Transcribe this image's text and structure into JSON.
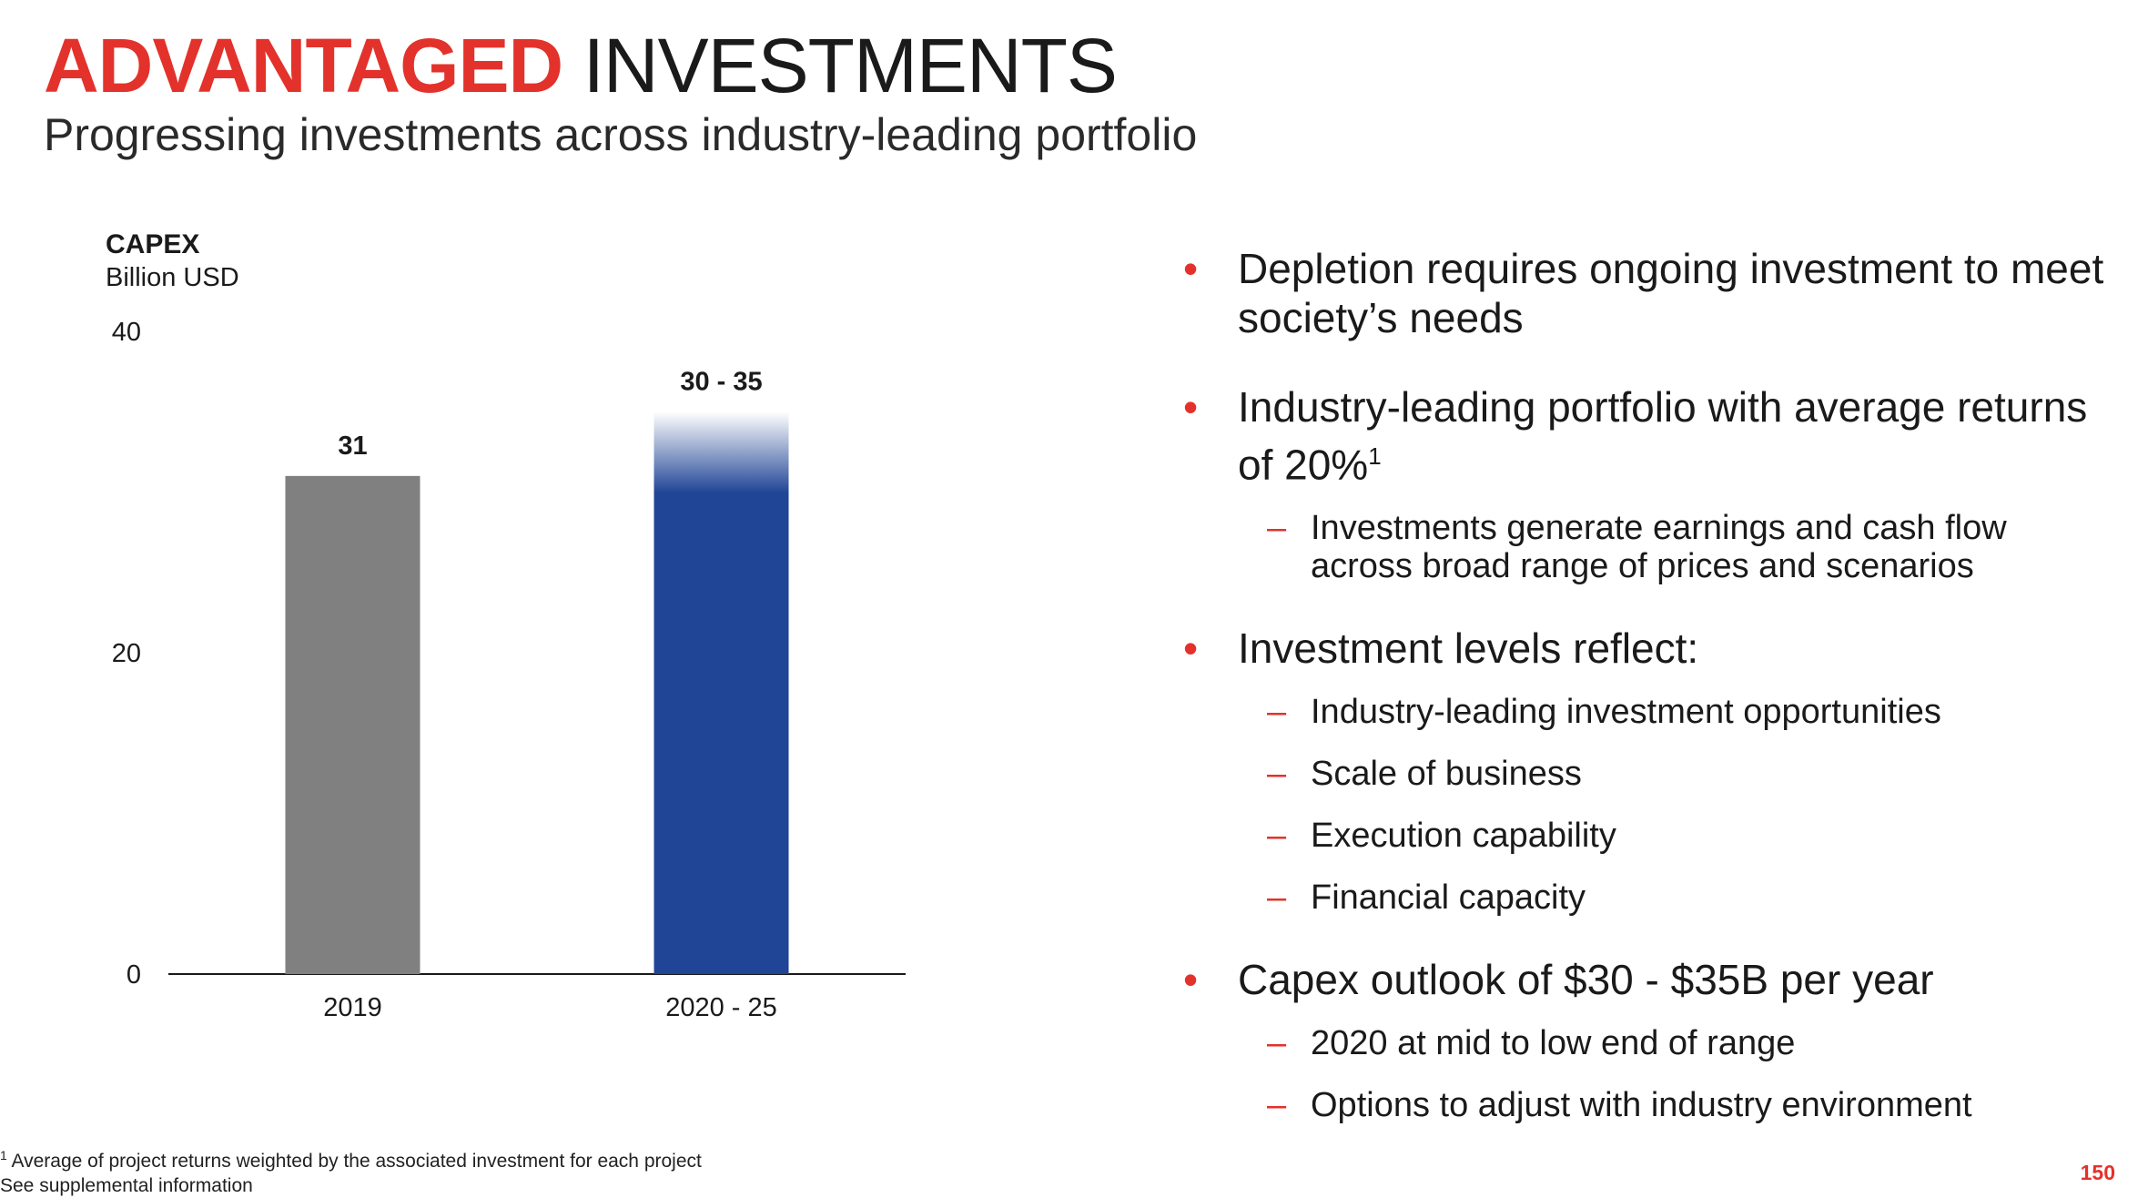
{
  "header": {
    "title_bold": "ADVANTAGED",
    "title_rest": "INVESTMENTS",
    "subtitle": "Progressing investments across industry-leading portfolio"
  },
  "chart_data": {
    "type": "bar",
    "title": "CAPEX",
    "ylabel": "Billion USD",
    "categories": [
      "2019",
      "2020 - 25"
    ],
    "values": [
      31,
      35
    ],
    "ranges": [
      null,
      [
        30,
        35
      ]
    ],
    "data_labels": [
      "31",
      "30 - 35"
    ],
    "yticks": [
      "0",
      "20",
      "40"
    ],
    "ylim": [
      0,
      40
    ],
    "grid": false,
    "colors": [
      "#808080",
      "#204596"
    ]
  },
  "bullets": [
    {
      "text": "Depletion requires ongoing investment to meet society’s needs",
      "sub": []
    },
    {
      "text": "Industry-leading portfolio with average returns of 20%",
      "sup": "1",
      "sub": [
        "Investments generate earnings and cash flow across broad range of prices and scenarios"
      ]
    },
    {
      "text": "Investment levels reflect:",
      "sub": [
        "Industry-leading investment opportunities",
        "Scale of business",
        "Execution capability",
        "Financial capacity"
      ]
    },
    {
      "text": "Capex outlook of $30 - $35B per year",
      "sub": [
        "2020 at mid to low end of range",
        "Options to adjust with industry environment"
      ]
    }
  ],
  "footnote": {
    "marker": "1",
    "line1": "Average of project returns weighted by the associated investment for each project",
    "line2": "See supplemental information"
  },
  "page_number": "150",
  "colors": {
    "accent": "#e3322b",
    "bar_2019": "#808080",
    "bar_outlook": "#204596"
  }
}
